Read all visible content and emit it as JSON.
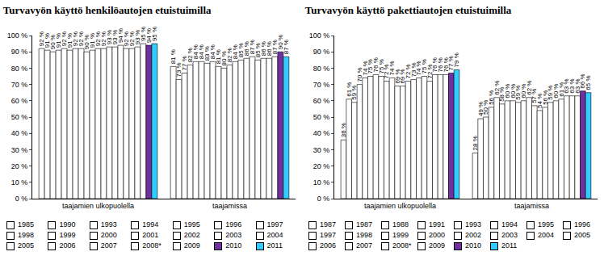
{
  "chart_data": [
    {
      "type": "bar",
      "title": "Turvavyön käyttö henkilöautojen etuistuimilla",
      "categories": [
        "taajamien ulkopuolella",
        "taajamissa"
      ],
      "ylim": [
        0,
        100
      ],
      "yticks": [
        {
          "value": 0,
          "label": "0 %"
        },
        {
          "value": 10,
          "label": "10 %"
        },
        {
          "value": 20,
          "label": "20 %"
        },
        {
          "value": 30,
          "label": "30 %"
        },
        {
          "value": 40,
          "label": "40 %"
        },
        {
          "value": 50,
          "label": "50 %"
        },
        {
          "value": 60,
          "label": "60 %"
        },
        {
          "value": 70,
          "label": "70 %"
        },
        {
          "value": 80,
          "label": "80 %"
        },
        {
          "value": 90,
          "label": "90 %"
        },
        {
          "value": 100,
          "label": "100 %"
        }
      ],
      "grid": false,
      "legend": "bottom",
      "data_labels": true,
      "series": [
        {
          "name": "1985",
          "color": "#ffffff",
          "values": [
            92,
            81
          ],
          "value_labels": [
            "92 %",
            "81 %"
          ]
        },
        {
          "name": "1990",
          "color": "#ffffff",
          "values": [
            91,
            73
          ],
          "value_labels": [
            "91 %",
            "73 %"
          ]
        },
        {
          "name": "1993",
          "color": "#ffffff",
          "values": [
            90,
            77
          ],
          "value_labels": [
            "90 %",
            "77 %"
          ]
        },
        {
          "name": "1994",
          "color": "#ffffff",
          "values": [
            91,
            82
          ],
          "value_labels": [
            "91 %",
            "82 %"
          ]
        },
        {
          "name": "1995",
          "color": "#ffffff",
          "values": [
            92,
            84
          ],
          "value_labels": [
            "92 %",
            "84 %"
          ]
        },
        {
          "name": "1996",
          "color": "#ffffff",
          "values": [
            91,
            84
          ],
          "value_labels": [
            "91 %",
            "84 %"
          ]
        },
        {
          "name": "1997",
          "color": "#ffffff",
          "values": [
            92,
            83
          ],
          "value_labels": [
            "92 %",
            "83 %"
          ]
        },
        {
          "name": "1998",
          "color": "#ffffff",
          "values": [
            92,
            84
          ],
          "value_labels": [
            "92 %",
            "84 %"
          ]
        },
        {
          "name": "1999",
          "color": "#ffffff",
          "values": [
            90,
            81
          ],
          "value_labels": [
            "90 %",
            "81 %"
          ]
        },
        {
          "name": "2000",
          "color": "#ffffff",
          "values": [
            91,
            80
          ],
          "value_labels": [
            "91 %",
            "80 %"
          ]
        },
        {
          "name": "2001",
          "color": "#ffffff",
          "values": [
            92,
            82
          ],
          "value_labels": [
            "92 %",
            "82 %"
          ]
        },
        {
          "name": "2002",
          "color": "#ffffff",
          "values": [
            92,
            84
          ],
          "value_labels": [
            "92 %",
            "84 %"
          ]
        },
        {
          "name": "2003",
          "color": "#ffffff",
          "values": [
            93,
            85
          ],
          "value_labels": [
            "93 %",
            "85 %"
          ]
        },
        {
          "name": "2004",
          "color": "#ffffff",
          "values": [
            93,
            86
          ],
          "value_labels": [
            "93 %",
            "86 %"
          ]
        },
        {
          "name": "2005",
          "color": "#ffffff",
          "values": [
            94,
            87
          ],
          "value_labels": [
            "94 %",
            "87 %"
          ]
        },
        {
          "name": "2006",
          "color": "#ffffff",
          "values": [
            92,
            85
          ],
          "value_labels": [
            "92 %",
            "85 %"
          ]
        },
        {
          "name": "2007",
          "color": "#ffffff",
          "values": [
            92,
            86
          ],
          "value_labels": [
            "92 %",
            "86 %"
          ]
        },
        {
          "name": "2008*",
          "color": "#ffffff",
          "values": [
            93,
            86
          ],
          "value_labels": [
            "93 %",
            "86 %"
          ]
        },
        {
          "name": "2009",
          "color": "#ffffff",
          "values": [
            95,
            87
          ],
          "value_labels": [
            "95 %",
            "87 %"
          ]
        },
        {
          "name": "2010",
          "color": "#7030a0",
          "values": [
            94,
            90
          ],
          "value_labels": [
            "94 %",
            "90 %"
          ]
        },
        {
          "name": "2011",
          "color": "#33ccff",
          "values": [
            95,
            87
          ],
          "value_labels": [
            "95 %",
            "87 %"
          ]
        }
      ]
    },
    {
      "type": "bar",
      "title": "Turvavyön käyttö pakettiautojen etuistuimilla",
      "categories": [
        "taajamien ulkopuolella",
        "taajamissa"
      ],
      "ylim": [
        0,
        100
      ],
      "yticks": [
        {
          "value": 0,
          "label": "0 %"
        },
        {
          "value": 10,
          "label": "10 %"
        },
        {
          "value": 20,
          "label": "20 %"
        },
        {
          "value": 30,
          "label": "30 %"
        },
        {
          "value": 40,
          "label": "40 %"
        },
        {
          "value": 50,
          "label": "50 %"
        },
        {
          "value": 60,
          "label": "60 %"
        },
        {
          "value": 70,
          "label": "70 %"
        },
        {
          "value": 80,
          "label": "80 %"
        },
        {
          "value": 90,
          "label": "90 %"
        },
        {
          "value": 100,
          "label": "100 %"
        }
      ],
      "grid": false,
      "legend": "bottom",
      "data_labels": true,
      "series": [
        {
          "name": "1987",
          "color": "#ffffff",
          "values": [
            36,
            28
          ],
          "value_labels": [
            "36 %",
            "28 %"
          ]
        },
        {
          "name": "1987",
          "color": "#ffffff",
          "values": [
            61,
            49
          ],
          "value_labels": [
            "61 %",
            "49 %"
          ]
        },
        {
          "name": "1988",
          "color": "#ffffff",
          "values": [
            59,
            50
          ],
          "value_labels": [
            "59 %",
            "50 %"
          ]
        },
        {
          "name": "1991",
          "color": "#ffffff",
          "values": [
            70,
            56
          ],
          "value_labels": [
            "70 %",
            "56 %"
          ]
        },
        {
          "name": "1993",
          "color": "#ffffff",
          "values": [
            74,
            62
          ],
          "value_labels": [
            "74 %",
            "62 %"
          ]
        },
        {
          "name": "1994",
          "color": "#ffffff",
          "values": [
            75,
            58
          ],
          "value_labels": [
            "75 %",
            "58 %"
          ]
        },
        {
          "name": "1995",
          "color": "#ffffff",
          "values": [
            76,
            60
          ],
          "value_labels": [
            "76 %",
            "60 %"
          ]
        },
        {
          "name": "1996",
          "color": "#ffffff",
          "values": [
            75,
            60
          ],
          "value_labels": [
            "75 %",
            "60 %"
          ]
        },
        {
          "name": "1997",
          "color": "#ffffff",
          "values": [
            72,
            59
          ],
          "value_labels": [
            "72 %",
            "59 %"
          ]
        },
        {
          "name": "1998",
          "color": "#ffffff",
          "values": [
            74,
            60
          ],
          "value_labels": [
            "74 %",
            "60 %"
          ]
        },
        {
          "name": "1999",
          "color": "#ffffff",
          "values": [
            69,
            62
          ],
          "value_labels": [
            "69 %",
            "62 %"
          ]
        },
        {
          "name": "2000",
          "color": "#ffffff",
          "values": [
            69,
            57
          ],
          "value_labels": [
            "69 %",
            "57 %"
          ]
        },
        {
          "name": "2002",
          "color": "#ffffff",
          "values": [
            72,
            54
          ],
          "value_labels": [
            "72 %",
            "54 %"
          ]
        },
        {
          "name": "2003",
          "color": "#ffffff",
          "values": [
            73,
            56
          ],
          "value_labels": [
            "73 %",
            "56 %"
          ]
        },
        {
          "name": "2004",
          "color": "#ffffff",
          "values": [
            74,
            59
          ],
          "value_labels": [
            "74 %",
            "59 %"
          ]
        },
        {
          "name": "2005",
          "color": "#ffffff",
          "values": [
            75,
            60
          ],
          "value_labels": [
            "75 %",
            "60 %"
          ]
        },
        {
          "name": "2006",
          "color": "#ffffff",
          "values": [
            72,
            61
          ],
          "value_labels": [
            "72 %",
            "61 %"
          ]
        },
        {
          "name": "2007",
          "color": "#ffffff",
          "values": [
            76,
            63
          ],
          "value_labels": [
            "76 %",
            "63 %"
          ]
        },
        {
          "name": "2008*",
          "color": "#ffffff",
          "values": [
            76,
            63
          ],
          "value_labels": [
            "76 %",
            "63 %"
          ]
        },
        {
          "name": "2009",
          "color": "#ffffff",
          "values": [
            76,
            63
          ],
          "value_labels": [
            "76 %",
            "63 %"
          ]
        },
        {
          "name": "2010",
          "color": "#7030a0",
          "values": [
            77,
            66
          ],
          "value_labels": [
            "77 %",
            "66 %"
          ]
        },
        {
          "name": "2011",
          "color": "#33ccff",
          "values": [
            79,
            65
          ],
          "value_labels": [
            "79 %",
            "65 %"
          ]
        }
      ]
    }
  ]
}
